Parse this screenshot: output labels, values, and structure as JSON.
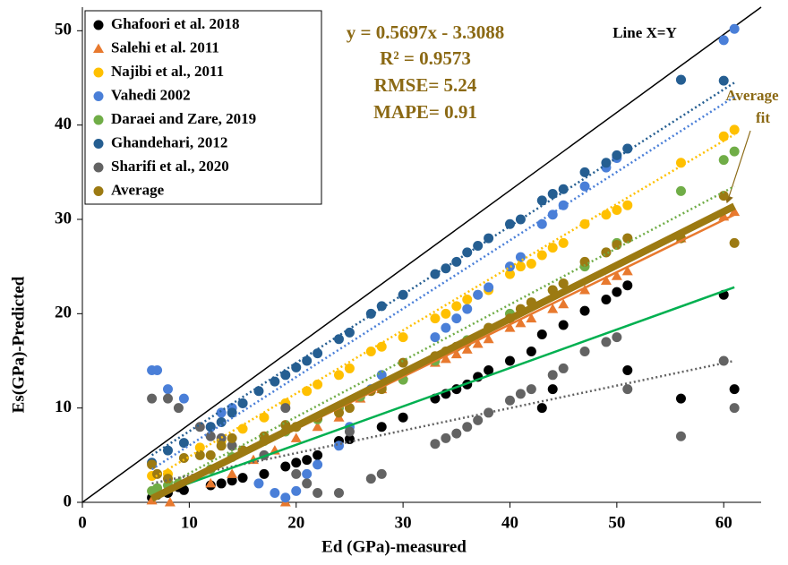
{
  "chart_data": {
    "type": "scatter",
    "x_label": "Ed (GPa)-measured",
    "y_label": "Es(GPa)-Predicted",
    "xlim": [
      0,
      63.5
    ],
    "ylim": [
      0,
      52.5
    ],
    "xticks": [
      0,
      10,
      20,
      30,
      40,
      50,
      60
    ],
    "yticks": [
      0,
      10,
      20,
      30,
      40,
      50
    ],
    "grid": false,
    "legend": "upper left",
    "annotations": [
      "y = 0.5697x - 3.3088",
      "R² = 0.9573",
      "RMSE= 5.24",
      "MAPE= 0.91"
    ],
    "reference_label": "Line X=Y",
    "average_fit_label": [
      "Average",
      "fit"
    ],
    "series": [
      {
        "name": "Ghafoori et al. 2018",
        "color": "#000000",
        "marker": "circle",
        "x": [
          6.5,
          7,
          8,
          9,
          9.5,
          12,
          13,
          14,
          15,
          17,
          19,
          20,
          21,
          22,
          24,
          25,
          28,
          30,
          33,
          34,
          35,
          36,
          37,
          38,
          40,
          42,
          43,
          43,
          44,
          45,
          47,
          49,
          50,
          51,
          51,
          56,
          60,
          61
        ],
        "y": [
          0.5,
          0.8,
          1,
          1.6,
          1.3,
          1.8,
          2,
          2.3,
          2.6,
          3,
          3.8,
          4.2,
          4.5,
          5,
          6.5,
          6.7,
          8,
          9,
          11,
          11.5,
          12,
          12.5,
          13.3,
          14,
          15,
          16,
          17.8,
          10,
          12,
          18.8,
          20.3,
          21.5,
          22.3,
          23,
          14,
          11,
          22,
          12
        ]
      },
      {
        "name": "Salehi et al. 2011",
        "color": "#e8792e",
        "marker": "triangle",
        "x": [
          6.5,
          8.2,
          12,
          14,
          16,
          18,
          19,
          20,
          22,
          24,
          26,
          28,
          30,
          33,
          34,
          35,
          36,
          37,
          38,
          40,
          41,
          42,
          44,
          45,
          47,
          49,
          50,
          51,
          56,
          60,
          61
        ],
        "y": [
          0.2,
          0,
          2,
          3,
          4.5,
          5.5,
          0,
          6.8,
          8,
          9,
          11,
          12,
          13.5,
          14.8,
          15.2,
          15.7,
          16.2,
          16.8,
          17.3,
          18.5,
          19,
          19.5,
          20.5,
          21,
          22.5,
          23.5,
          24,
          24.5,
          28,
          30.3,
          30.8
        ]
      },
      {
        "name": "Najibi et al., 2011",
        "color": "#ffc000",
        "marker": "circle",
        "x": [
          6.5,
          8,
          11,
          13,
          15,
          17,
          19,
          21,
          22,
          24,
          25,
          27,
          28,
          30,
          33,
          34,
          35,
          36,
          37,
          38,
          40,
          41,
          42,
          43,
          44,
          45,
          47,
          49,
          50,
          51,
          56,
          60,
          61
        ],
        "y": [
          2.8,
          3,
          5.8,
          6.5,
          7.8,
          9,
          10.5,
          11.8,
          12.5,
          13.5,
          14.2,
          16,
          16.5,
          17.5,
          19.5,
          20,
          20.8,
          21.5,
          22,
          22.5,
          24.2,
          25,
          25.3,
          26.2,
          27,
          27.5,
          29.5,
          30.5,
          31,
          31.5,
          36,
          38.8,
          39.5
        ]
      },
      {
        "name": "Vahedi 2002",
        "color": "#4a7fd8",
        "marker": "circle",
        "x": [
          6.5,
          7,
          8,
          9.5,
          12,
          13,
          14,
          15,
          16.5,
          18,
          19,
          20,
          21,
          22,
          24,
          25,
          27,
          28,
          33,
          34,
          35,
          36,
          37,
          38,
          40,
          41,
          43,
          44,
          45,
          47,
          49,
          50,
          51,
          56,
          60,
          61
        ],
        "y": [
          14,
          14,
          12,
          11,
          8,
          9.5,
          10,
          10.5,
          2,
          1,
          0.5,
          1.2,
          3,
          4,
          6,
          8,
          12,
          13.5,
          17.5,
          18.5,
          19.5,
          20.5,
          22,
          22.8,
          25,
          26,
          29.5,
          30.5,
          31.5,
          33.5,
          35.5,
          36.5,
          37.5,
          44.8,
          49,
          50.2
        ]
      },
      {
        "name": "Daraei and Zare, 2019",
        "color": "#70ad47",
        "marker": "circle",
        "x": [
          6.5,
          7,
          8,
          9,
          12,
          14,
          15,
          17,
          19,
          20,
          22,
          24,
          26,
          28,
          30,
          33,
          35,
          36,
          38,
          40,
          42,
          44,
          45,
          47,
          49,
          50,
          51,
          56,
          60,
          61
        ],
        "y": [
          1.2,
          1.5,
          1.8,
          2,
          3.5,
          4.8,
          5.5,
          6.5,
          7.5,
          8,
          8.8,
          10,
          11.2,
          12.2,
          13,
          15,
          16.5,
          17.2,
          18.5,
          20,
          21.2,
          22.5,
          23.2,
          25,
          26.5,
          27.5,
          28,
          33,
          36.3,
          37.2
        ]
      },
      {
        "name": "Ghandehari, 2012",
        "color": "#255e91",
        "marker": "circle",
        "x": [
          6.5,
          8,
          9.5,
          12,
          13,
          14,
          15,
          16.5,
          18,
          19,
          20,
          21,
          22,
          24,
          25,
          27,
          28,
          30,
          33,
          34,
          35,
          36,
          37,
          38,
          40,
          41,
          43,
          44,
          45,
          47,
          49,
          50,
          51,
          56,
          60
        ],
        "y": [
          4.2,
          5.5,
          6.3,
          8,
          8.5,
          9.5,
          10.5,
          11.8,
          12.8,
          13.5,
          14.3,
          15,
          15.8,
          17.3,
          18,
          20,
          20.8,
          22,
          24.2,
          24.8,
          25.5,
          26.5,
          27.2,
          28,
          29.5,
          30,
          32,
          32.7,
          33.2,
          35,
          36,
          36.8,
          37.5,
          44.8,
          44.7
        ]
      },
      {
        "name": "Sharifi et al., 2020",
        "color": "#636363",
        "marker": "circle",
        "x": [
          6.5,
          8,
          9,
          11,
          12,
          13,
          14,
          15,
          17,
          19,
          20,
          21,
          22,
          24,
          25,
          27,
          28,
          33,
          34,
          35,
          36,
          37,
          38,
          40,
          41,
          42,
          44,
          45,
          47,
          49,
          50,
          51,
          56,
          60,
          61
        ],
        "y": [
          11,
          11,
          10,
          8,
          7,
          6.8,
          6,
          5.5,
          5,
          10,
          3,
          2,
          1,
          1,
          7.5,
          2.5,
          3,
          6.2,
          6.8,
          7.3,
          8,
          8.7,
          9.5,
          10.8,
          11.5,
          12,
          13.5,
          14.2,
          16,
          17,
          17.5,
          12,
          7,
          15,
          10
        ]
      },
      {
        "name": "Average",
        "color": "#9c7a12",
        "marker": "circle",
        "x": [
          6.5,
          7,
          8,
          9.5,
          11,
          12,
          13,
          14,
          15,
          17,
          19,
          20,
          22,
          24,
          25,
          27,
          28,
          30,
          33,
          34,
          35,
          36,
          38,
          40,
          41,
          42,
          44,
          45,
          47,
          49,
          50,
          51,
          56,
          60,
          61
        ],
        "y": [
          4,
          3,
          2.5,
          4.7,
          5,
          5,
          6,
          6.8,
          5.5,
          7,
          8.2,
          8,
          9,
          9.5,
          10,
          11.8,
          12,
          14.8,
          15.5,
          16,
          16.5,
          17,
          18.5,
          19.5,
          20.5,
          21.2,
          22.5,
          23.2,
          25.5,
          26.5,
          27.3,
          28,
          28,
          32.5,
          27.5
        ]
      }
    ],
    "trendlines": [
      {
        "color": "#4a7fd8",
        "style": "dotted",
        "x": [
          6.5,
          61
        ],
        "y": [
          3.5,
          43
        ]
      },
      {
        "color": "#255e91",
        "style": "dotted",
        "x": [
          6.5,
          61
        ],
        "y": [
          5,
          44.5
        ]
      },
      {
        "color": "#ffc000",
        "style": "dotted",
        "x": [
          6.5,
          61
        ],
        "y": [
          2.5,
          39
        ]
      },
      {
        "color": "#70ad47",
        "style": "dotted",
        "x": [
          6.5,
          61
        ],
        "y": [
          1,
          33.5
        ]
      },
      {
        "color": "#636363",
        "style": "dotted",
        "x": [
          6.5,
          61
        ],
        "y": [
          2,
          15
        ]
      },
      {
        "color": "#00b050",
        "style": "solid",
        "x": [
          6.5,
          61
        ],
        "y": [
          0.6,
          22.8
        ]
      },
      {
        "color": "#e8792e",
        "style": "solid",
        "x": [
          6.5,
          61
        ],
        "y": [
          0.3,
          30.5
        ]
      },
      {
        "color": "#9c7a12",
        "style": "thick",
        "x": [
          6.5,
          61
        ],
        "y": [
          0.4,
          31.4
        ]
      }
    ]
  }
}
